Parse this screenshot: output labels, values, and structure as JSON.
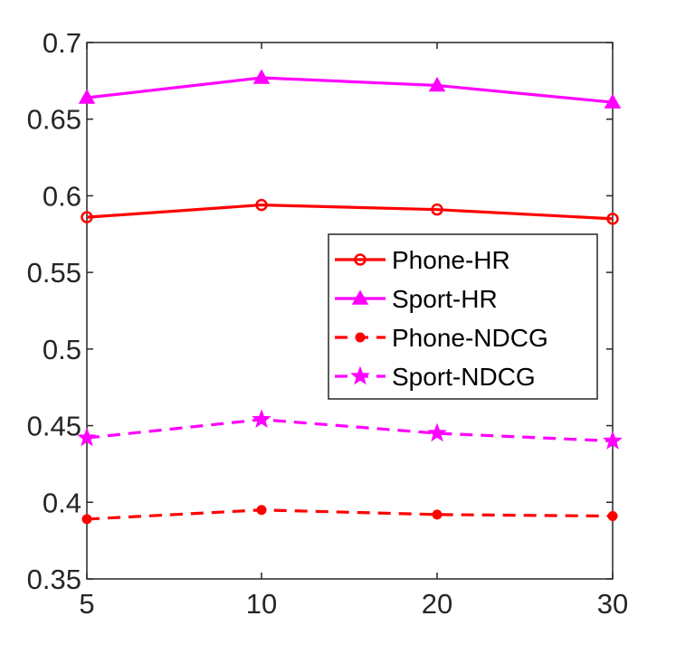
{
  "chart_data": {
    "type": "line",
    "title": "",
    "xlabel": "",
    "ylabel": "",
    "x": [
      5,
      10,
      20,
      30
    ],
    "x_tick_labels": [
      "5",
      "10",
      "20",
      "30"
    ],
    "y_tick_labels": [
      "0.35",
      "0.4",
      "0.45",
      "0.5",
      "0.55",
      "0.6",
      "0.65",
      "0.7"
    ],
    "ylim": [
      0.35,
      0.7
    ],
    "grid": false,
    "legend_position": "right-middle",
    "series": [
      {
        "name": "Phone-HR",
        "values": [
          0.586,
          0.594,
          0.591,
          0.585
        ],
        "color": "#ff0000",
        "line_style": "solid",
        "marker": "open-circle"
      },
      {
        "name": "Sport-HR",
        "values": [
          0.664,
          0.677,
          0.672,
          0.661
        ],
        "color": "#ff00ff",
        "line_style": "solid",
        "marker": "filled-triangle"
      },
      {
        "name": "Phone-NDCG",
        "values": [
          0.389,
          0.395,
          0.392,
          0.391
        ],
        "color": "#ff0000",
        "line_style": "dashed",
        "marker": "filled-dot"
      },
      {
        "name": "Sport-NDCG",
        "values": [
          0.442,
          0.454,
          0.445,
          0.44
        ],
        "color": "#ff00ff",
        "line_style": "dashed",
        "marker": "filled-star"
      }
    ]
  }
}
